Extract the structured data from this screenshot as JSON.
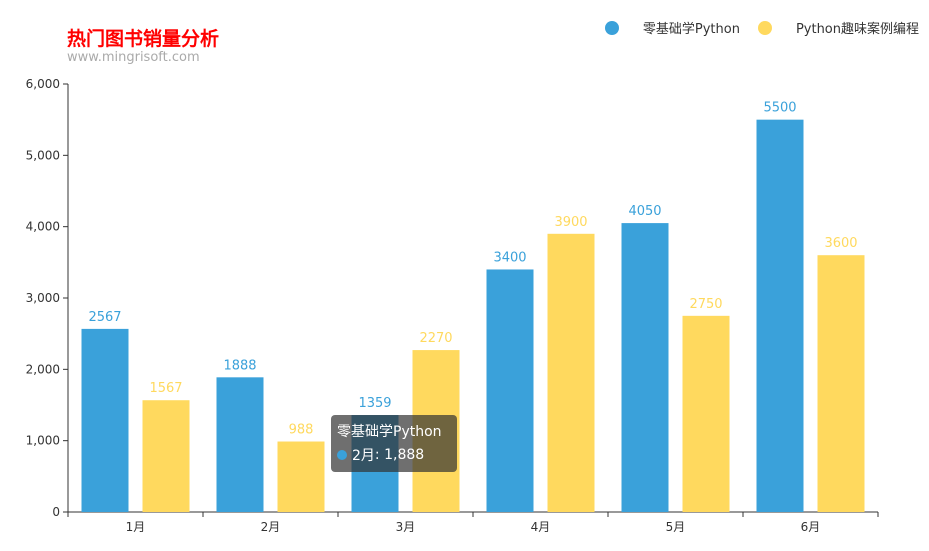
{
  "title": "热门图书销量分析",
  "subtitle": "www.mingrisoft.com",
  "legend": [
    {
      "name": "零基础学Python",
      "color": "#3aa1da"
    },
    {
      "name": "Python趣味案例编程",
      "color": "#ffd95e"
    }
  ],
  "tooltip": {
    "series_name": "零基础学Python",
    "category": "2月",
    "value": "1,888",
    "color": "#3aa1da"
  },
  "chart_data": {
    "type": "bar",
    "categories": [
      "1月",
      "2月",
      "3月",
      "4月",
      "5月",
      "6月"
    ],
    "series": [
      {
        "name": "零基础学Python",
        "color": "#3aa1da",
        "values": [
          2567,
          1888,
          1359,
          3400,
          4050,
          5500
        ]
      },
      {
        "name": "Python趣味案例编程",
        "color": "#ffd95e",
        "values": [
          1567,
          988,
          2270,
          3900,
          2750,
          3600
        ]
      }
    ],
    "ylim": [
      0,
      6000
    ],
    "yticks": [
      0,
      1000,
      2000,
      3000,
      4000,
      5000,
      6000
    ],
    "ytick_labels": [
      "0",
      "1,000",
      "2,000",
      "3,000",
      "4,000",
      "5,000",
      "6,000"
    ],
    "grid": false,
    "legend_position": "top-right"
  }
}
